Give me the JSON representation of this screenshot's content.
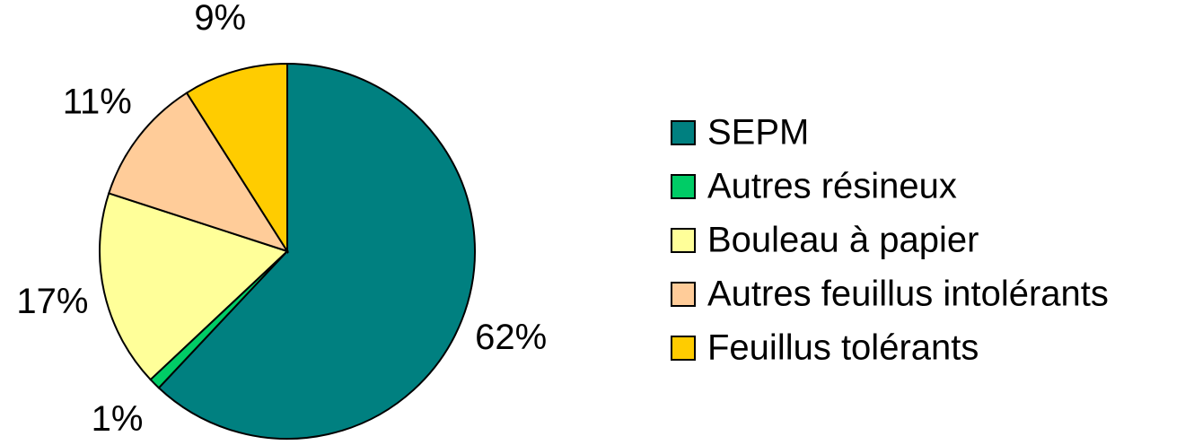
{
  "chart_data": {
    "type": "pie",
    "categories": [
      "SEPM",
      "Autres résineux",
      "Bouleau à papier",
      "Autres feuillus intolérants",
      "Feuillus tolérants"
    ],
    "values": [
      62,
      1,
      17,
      11,
      9
    ],
    "value_labels": [
      "62%",
      "1%",
      "17%",
      "11%",
      "9%"
    ],
    "colors": [
      "#008080",
      "#00cc66",
      "#ffff99",
      "#ffcc99",
      "#ffcc00"
    ],
    "legend": "right"
  }
}
